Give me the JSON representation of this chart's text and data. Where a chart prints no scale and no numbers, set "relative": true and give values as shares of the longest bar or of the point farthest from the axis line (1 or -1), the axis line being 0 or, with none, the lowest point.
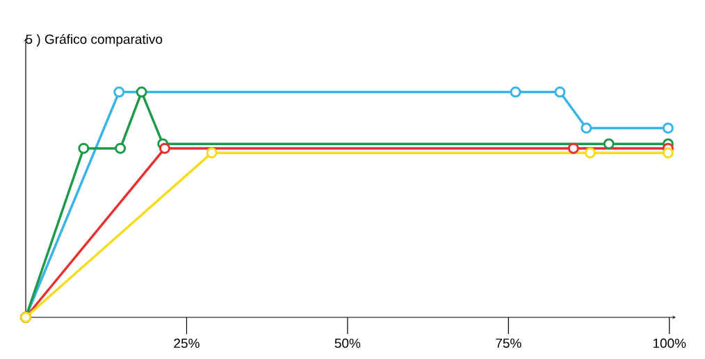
{
  "chart_data": {
    "type": "line",
    "title": "5 ) Gráfico comparativo",
    "relative": true,
    "marker": "circle",
    "xlim": [
      0,
      101
    ],
    "xticks": [
      {
        "value": 25,
        "label": "25%"
      },
      {
        "value": 50,
        "label": "50%"
      },
      {
        "value": 75,
        "label": "75%"
      },
      {
        "value": 100,
        "label": "100%"
      }
    ],
    "series": [
      {
        "color": "#3ab4e2",
        "x": [
          0,
          14.5,
          76.1,
          83.0,
          87.1,
          99.8
        ],
        "values": [
          0,
          1.0,
          1.0,
          1.0,
          0.84,
          0.84
        ]
      },
      {
        "color": "#1f9a4a",
        "x": [
          0,
          9.0,
          14.7,
          18.0,
          21.3,
          90.6,
          99.8
        ],
        "values": [
          0,
          0.75,
          0.75,
          1.0,
          0.77,
          0.77,
          0.77
        ]
      },
      {
        "color": "#e8312f",
        "x": [
          0,
          21.6,
          85.1,
          99.8
        ],
        "values": [
          0,
          0.75,
          0.75,
          0.75
        ]
      },
      {
        "color": "#f7dc1b",
        "x": [
          0,
          28.9,
          87.7,
          99.8
        ],
        "values": [
          0,
          0.73,
          0.73,
          0.73
        ]
      }
    ]
  }
}
